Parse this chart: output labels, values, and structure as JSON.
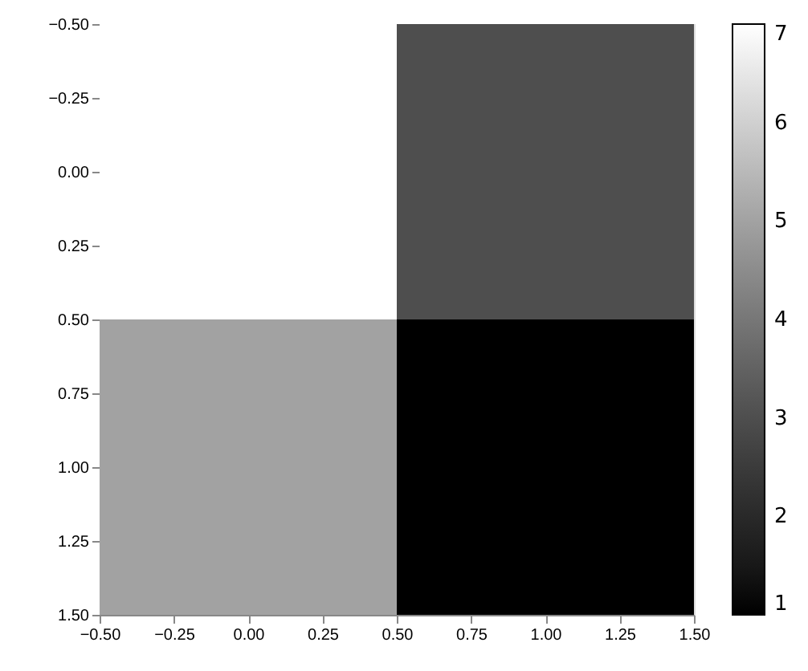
{
  "chart_data": {
    "type": "heatmap",
    "cells": [
      [
        7,
        3
      ],
      [
        5,
        1
      ]
    ],
    "xlim": [
      -0.5,
      1.5
    ],
    "ylim": [
      1.5,
      -0.5
    ],
    "xticks": [
      {
        "value": -0.5,
        "label": "−0.50"
      },
      {
        "value": -0.25,
        "label": "−0.25"
      },
      {
        "value": 0,
        "label": "0.00"
      },
      {
        "value": 0.25,
        "label": "0.25"
      },
      {
        "value": 0.5,
        "label": "0.50"
      },
      {
        "value": 0.75,
        "label": "0.75"
      },
      {
        "value": 1,
        "label": "1.00"
      },
      {
        "value": 1.25,
        "label": "1.25"
      },
      {
        "value": 1.5,
        "label": "1.50"
      }
    ],
    "yticks": [
      {
        "value": -0.5,
        "label": "−0.50"
      },
      {
        "value": -0.25,
        "label": "−0.25"
      },
      {
        "value": 0,
        "label": "0.00"
      },
      {
        "value": 0.25,
        "label": "0.25"
      },
      {
        "value": 0.5,
        "label": "0.50"
      },
      {
        "value": 0.75,
        "label": "0.75"
      },
      {
        "value": 1,
        "label": "1.00"
      },
      {
        "value": 1.25,
        "label": "1.25"
      },
      {
        "value": 1.5,
        "label": "1.50"
      }
    ],
    "clim": [
      1,
      7
    ],
    "cticks": [
      1,
      2,
      3,
      4,
      5,
      6,
      7
    ]
  }
}
